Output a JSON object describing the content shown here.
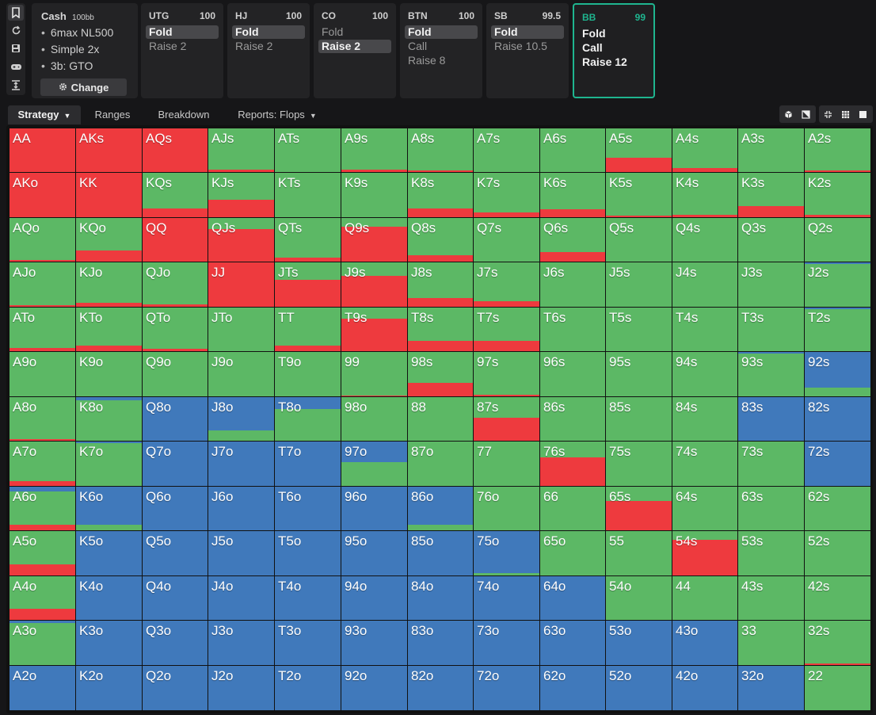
{
  "colors": {
    "fold": "#4079bb",
    "call": "#5cb865",
    "raise": "#ee3a3e",
    "active_border": "#1fb58f"
  },
  "sidebar_icons": [
    "bookmark-icon",
    "refresh-icon",
    "save-icon",
    "gamepad-icon",
    "collapse-icon"
  ],
  "game": {
    "title": "Cash",
    "stack": "100bb",
    "details": [
      "6max NL500",
      "Simple 2x",
      "3b: GTO"
    ],
    "change_label": "Change"
  },
  "positions": [
    {
      "name": "UTG",
      "stack": "100",
      "actions": [
        "Fold",
        "Raise 2"
      ],
      "selected": 0,
      "current": false
    },
    {
      "name": "HJ",
      "stack": "100",
      "actions": [
        "Fold",
        "Raise 2"
      ],
      "selected": 0,
      "current": false
    },
    {
      "name": "CO",
      "stack": "100",
      "actions": [
        "Fold",
        "Raise 2"
      ],
      "selected": 1,
      "current": false
    },
    {
      "name": "BTN",
      "stack": "100",
      "actions": [
        "Fold",
        "Call",
        "Raise 8"
      ],
      "selected": 0,
      "current": false
    },
    {
      "name": "SB",
      "stack": "99.5",
      "actions": [
        "Fold",
        "Raise 10.5"
      ],
      "selected": 0,
      "current": false
    },
    {
      "name": "BB",
      "stack": "99",
      "actions": [
        "Fold",
        "Call",
        "Raise 12"
      ],
      "selected": -1,
      "current": true
    }
  ],
  "tabs": [
    {
      "label": "Strategy",
      "dropdown": true,
      "active": true
    },
    {
      "label": "Ranges",
      "dropdown": false,
      "active": false
    },
    {
      "label": "Breakdown",
      "dropdown": false,
      "active": false
    },
    {
      "label": "Reports: Flops",
      "dropdown": true,
      "active": false
    }
  ],
  "view_tools": [
    "cube-icon",
    "contrast-icon",
    "compact-icon",
    "grid-icon",
    "square-icon"
  ],
  "hands": [
    [
      "AA",
      "AKs",
      "AQs",
      "AJs",
      "ATs",
      "A9s",
      "A8s",
      "A7s",
      "A6s",
      "A5s",
      "A4s",
      "A3s",
      "A2s"
    ],
    [
      "AKo",
      "KK",
      "KQs",
      "KJs",
      "KTs",
      "K9s",
      "K8s",
      "K7s",
      "K6s",
      "K5s",
      "K4s",
      "K3s",
      "K2s"
    ],
    [
      "AQo",
      "KQo",
      "QQ",
      "QJs",
      "QTs",
      "Q9s",
      "Q8s",
      "Q7s",
      "Q6s",
      "Q5s",
      "Q4s",
      "Q3s",
      "Q2s"
    ],
    [
      "AJo",
      "KJo",
      "QJo",
      "JJ",
      "JTs",
      "J9s",
      "J8s",
      "J7s",
      "J6s",
      "J5s",
      "J4s",
      "J3s",
      "J2s"
    ],
    [
      "ATo",
      "KTo",
      "QTo",
      "JTo",
      "TT",
      "T9s",
      "T8s",
      "T7s",
      "T6s",
      "T5s",
      "T4s",
      "T3s",
      "T2s"
    ],
    [
      "A9o",
      "K9o",
      "Q9o",
      "J9o",
      "T9o",
      "99",
      "98s",
      "97s",
      "96s",
      "95s",
      "94s",
      "93s",
      "92s"
    ],
    [
      "A8o",
      "K8o",
      "Q8o",
      "J8o",
      "T8o",
      "98o",
      "88",
      "87s",
      "86s",
      "85s",
      "84s",
      "83s",
      "82s"
    ],
    [
      "A7o",
      "K7o",
      "Q7o",
      "J7o",
      "T7o",
      "97o",
      "87o",
      "77",
      "76s",
      "75s",
      "74s",
      "73s",
      "72s"
    ],
    [
      "A6o",
      "K6o",
      "Q6o",
      "J6o",
      "T6o",
      "96o",
      "86o",
      "76o",
      "66",
      "65s",
      "64s",
      "63s",
      "62s"
    ],
    [
      "A5o",
      "K5o",
      "Q5o",
      "J5o",
      "T5o",
      "95o",
      "85o",
      "75o",
      "65o",
      "55",
      "54s",
      "53s",
      "52s"
    ],
    [
      "A4o",
      "K4o",
      "Q4o",
      "J4o",
      "T4o",
      "94o",
      "84o",
      "74o",
      "64o",
      "54o",
      "44",
      "43s",
      "42s"
    ],
    [
      "A3o",
      "K3o",
      "Q3o",
      "J3o",
      "T3o",
      "93o",
      "83o",
      "73o",
      "63o",
      "53o",
      "43o",
      "33",
      "32s"
    ],
    [
      "A2o",
      "K2o",
      "Q2o",
      "J2o",
      "T2o",
      "92o",
      "82o",
      "72o",
      "62o",
      "52o",
      "42o",
      "32o",
      "22"
    ]
  ],
  "strategy_fold_call_raise": [
    [
      [
        0,
        0,
        1
      ],
      [
        0,
        0,
        1
      ],
      [
        0,
        0,
        1
      ],
      [
        0,
        0.95,
        0.05
      ],
      [
        0,
        1,
        0
      ],
      [
        0,
        0.95,
        0.05
      ],
      [
        0,
        0.97,
        0.03
      ],
      [
        0,
        1,
        0
      ],
      [
        0,
        1,
        0
      ],
      [
        0,
        0.68,
        0.32
      ],
      [
        0,
        0.9,
        0.1
      ],
      [
        0,
        1,
        0
      ],
      [
        0,
        0.96,
        0.04
      ]
    ],
    [
      [
        0,
        0,
        1
      ],
      [
        0,
        0,
        1
      ],
      [
        0,
        0.8,
        0.2
      ],
      [
        0,
        0.6,
        0.4
      ],
      [
        0,
        1,
        0
      ],
      [
        0,
        1,
        0
      ],
      [
        0,
        0.8,
        0.2
      ],
      [
        0,
        0.9,
        0.1
      ],
      [
        0,
        0.82,
        0.18
      ],
      [
        0,
        0.96,
        0.04
      ],
      [
        0,
        0.95,
        0.05
      ],
      [
        0,
        0.75,
        0.25
      ],
      [
        0,
        0.94,
        0.06
      ]
    ],
    [
      [
        0,
        0.96,
        0.04
      ],
      [
        0,
        0.75,
        0.25
      ],
      [
        0,
        0,
        1
      ],
      [
        0,
        0.25,
        0.75
      ],
      [
        0,
        0.9,
        0.1
      ],
      [
        0,
        0.2,
        0.8
      ],
      [
        0,
        0.86,
        0.14
      ],
      [
        0,
        1,
        0
      ],
      [
        0,
        0.78,
        0.22
      ],
      [
        0,
        1,
        0
      ],
      [
        0,
        1,
        0
      ],
      [
        0,
        1,
        0
      ],
      [
        0,
        1,
        0
      ]
    ],
    [
      [
        0,
        0.96,
        0.04
      ],
      [
        0,
        0.91,
        0.09
      ],
      [
        0,
        0.95,
        0.05
      ],
      [
        0,
        0,
        1
      ],
      [
        0,
        0.4,
        0.6
      ],
      [
        0,
        0.3,
        0.7
      ],
      [
        0,
        0.8,
        0.2
      ],
      [
        0,
        0.87,
        0.13
      ],
      [
        0,
        1,
        0
      ],
      [
        0,
        1,
        0
      ],
      [
        0,
        1,
        0
      ],
      [
        0,
        1,
        0
      ],
      [
        0.04,
        0.96,
        0
      ]
    ],
    [
      [
        0,
        0.93,
        0.07
      ],
      [
        0,
        0.87,
        0.13
      ],
      [
        0,
        0.95,
        0.05
      ],
      [
        0,
        1,
        0
      ],
      [
        0,
        0.88,
        0.12
      ],
      [
        0,
        0.25,
        0.75
      ],
      [
        0,
        0.77,
        0.23
      ],
      [
        0,
        0.76,
        0.24
      ],
      [
        0,
        1,
        0
      ],
      [
        0,
        1,
        0
      ],
      [
        0,
        1,
        0
      ],
      [
        0,
        1,
        0
      ],
      [
        0.03,
        0.97,
        0
      ]
    ],
    [
      [
        0,
        1,
        0
      ],
      [
        0,
        1,
        0
      ],
      [
        0,
        1,
        0
      ],
      [
        0,
        1,
        0
      ],
      [
        0,
        1,
        0
      ],
      [
        0,
        0.98,
        0.02
      ],
      [
        0,
        0.7,
        0.3
      ],
      [
        0,
        0.96,
        0.04
      ],
      [
        0,
        1,
        0
      ],
      [
        0,
        1,
        0
      ],
      [
        0,
        1,
        0
      ],
      [
        0.04,
        0.96,
        0
      ],
      [
        0.8,
        0.2,
        0
      ]
    ],
    [
      [
        0,
        0.96,
        0.04
      ],
      [
        0.08,
        0.92,
        0
      ],
      [
        1,
        0,
        0
      ],
      [
        0.76,
        0.24,
        0
      ],
      [
        0.28,
        0.72,
        0
      ],
      [
        0,
        1,
        0
      ],
      [
        0,
        1,
        0
      ],
      [
        0,
        0.48,
        0.52
      ],
      [
        0,
        1,
        0
      ],
      [
        0,
        1,
        0
      ],
      [
        0,
        1,
        0
      ],
      [
        1,
        0,
        0
      ],
      [
        1,
        0,
        0
      ]
    ],
    [
      [
        0,
        0.9,
        0.1
      ],
      [
        0.03,
        0.97,
        0
      ],
      [
        1,
        0,
        0
      ],
      [
        1,
        0,
        0
      ],
      [
        1,
        0,
        0
      ],
      [
        0.47,
        0.53,
        0
      ],
      [
        0,
        1,
        0
      ],
      [
        0,
        1,
        0
      ],
      [
        0,
        0.35,
        0.65
      ],
      [
        0,
        1,
        0
      ],
      [
        0,
        1,
        0
      ],
      [
        0,
        1,
        0
      ],
      [
        1,
        0,
        0
      ]
    ],
    [
      [
        0.1,
        0.78,
        0.12
      ],
      [
        0.88,
        0.12,
        0
      ],
      [
        1,
        0,
        0
      ],
      [
        1,
        0,
        0
      ],
      [
        1,
        0,
        0
      ],
      [
        1,
        0,
        0
      ],
      [
        0.87,
        0.13,
        0
      ],
      [
        0,
        1,
        0
      ],
      [
        0,
        1,
        0
      ],
      [
        0,
        0.32,
        0.68
      ],
      [
        0,
        1,
        0
      ],
      [
        0,
        1,
        0
      ],
      [
        0,
        1,
        0
      ]
    ],
    [
      [
        0,
        0.75,
        0.25
      ],
      [
        1,
        0,
        0
      ],
      [
        1,
        0,
        0
      ],
      [
        1,
        0,
        0
      ],
      [
        1,
        0,
        0
      ],
      [
        1,
        0,
        0
      ],
      [
        1,
        0,
        0
      ],
      [
        0.94,
        0.06,
        0
      ],
      [
        0,
        1,
        0
      ],
      [
        0,
        1,
        0
      ],
      [
        0,
        0.2,
        0.8
      ],
      [
        0,
        1,
        0
      ],
      [
        0,
        1,
        0
      ]
    ],
    [
      [
        0,
        0.75,
        0.25
      ],
      [
        1,
        0,
        0
      ],
      [
        1,
        0,
        0
      ],
      [
        1,
        0,
        0
      ],
      [
        1,
        0,
        0
      ],
      [
        1,
        0,
        0
      ],
      [
        1,
        0,
        0
      ],
      [
        1,
        0,
        0
      ],
      [
        1,
        0,
        0
      ],
      [
        0,
        1,
        0
      ],
      [
        0,
        1,
        0
      ],
      [
        0,
        1,
        0
      ],
      [
        0,
        1,
        0
      ]
    ],
    [
      [
        0.06,
        0.94,
        0
      ],
      [
        1,
        0,
        0
      ],
      [
        1,
        0,
        0
      ],
      [
        1,
        0,
        0
      ],
      [
        1,
        0,
        0
      ],
      [
        1,
        0,
        0
      ],
      [
        1,
        0,
        0
      ],
      [
        1,
        0,
        0
      ],
      [
        1,
        0,
        0
      ],
      [
        1,
        0,
        0
      ],
      [
        1,
        0,
        0
      ],
      [
        0,
        1,
        0
      ],
      [
        0,
        0.96,
        0.04
      ]
    ],
    [
      [
        1,
        0,
        0
      ],
      [
        1,
        0,
        0
      ],
      [
        1,
        0,
        0
      ],
      [
        1,
        0,
        0
      ],
      [
        1,
        0,
        0
      ],
      [
        1,
        0,
        0
      ],
      [
        1,
        0,
        0
      ],
      [
        1,
        0,
        0
      ],
      [
        1,
        0,
        0
      ],
      [
        1,
        0,
        0
      ],
      [
        1,
        0,
        0
      ],
      [
        1,
        0,
        0
      ],
      [
        0,
        1,
        0
      ]
    ]
  ]
}
